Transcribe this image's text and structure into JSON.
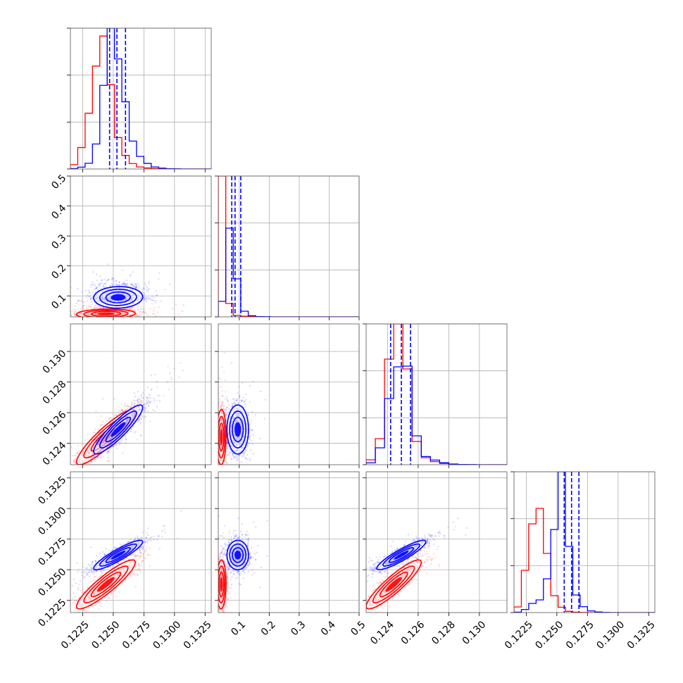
{
  "chart_data": {
    "type": "scatter",
    "kind": "corner-plot",
    "grid": true,
    "colors": {
      "red": "#ff0000",
      "blue": "#0000ff"
    },
    "series": [
      {
        "color": "red",
        "mean": [
          0.1244,
          0.04,
          0.1244,
          0.1238
        ],
        "std": [
          0.0012,
          0.008,
          0.0009,
          0.001
        ],
        "corr": {
          "0-2": 0.9,
          "0-3": 0.9,
          "2-3": 0.9,
          "0-1": 0.1,
          "1-2": 0.05,
          "1-3": 0.05
        }
      },
      {
        "color": "blue",
        "mean": [
          0.1254,
          0.095,
          0.1249,
          0.1262
        ],
        "std": [
          0.001,
          0.018,
          0.0008,
          0.0006
        ],
        "corr": {
          "0-2": 0.9,
          "0-3": 0.9,
          "2-3": 0.9,
          "0-1": 0.05,
          "1-2": 0.0,
          "1-3": 0.0
        }
      }
    ],
    "blue_quantiles": [
      [
        0.1247,
        0.1253,
        0.126
      ],
      [
        0.075,
        0.086,
        0.105
      ],
      [
        0.1242,
        0.1249,
        0.1255
      ],
      [
        0.1256,
        0.1262,
        0.1268
      ]
    ],
    "parameters": [
      {
        "range": [
          0.1215,
          0.133
        ],
        "ticks": [
          {
            "v": 0.1225,
            "label": "0.1225"
          },
          {
            "v": 0.125,
            "label": "0.1250"
          },
          {
            "v": 0.1275,
            "label": "0.1275"
          },
          {
            "v": 0.13,
            "label": "0.1300"
          },
          {
            "v": 0.1325,
            "label": "0.1325"
          }
        ]
      },
      {
        "range": [
          0.03,
          0.5
        ],
        "ticks": [
          {
            "v": 0.1,
            "label": "0.1"
          },
          {
            "v": 0.2,
            "label": "0.2"
          },
          {
            "v": 0.3,
            "label": "0.3"
          },
          {
            "v": 0.4,
            "label": "0.4"
          },
          {
            "v": 0.5,
            "label": "0.5"
          }
        ]
      },
      {
        "range": [
          0.1226,
          0.1318
        ],
        "ticks": [
          {
            "v": 0.124,
            "label": "0.124"
          },
          {
            "v": 0.126,
            "label": "0.126"
          },
          {
            "v": 0.128,
            "label": "0.128"
          },
          {
            "v": 0.13,
            "label": "0.130"
          }
        ]
      },
      {
        "range": [
          0.1215,
          0.133
        ],
        "ticks": [
          {
            "v": 0.1225,
            "label": "0.1225"
          },
          {
            "v": 0.125,
            "label": "0.1250"
          },
          {
            "v": 0.1275,
            "label": "0.1275"
          },
          {
            "v": 0.13,
            "label": "0.1300"
          },
          {
            "v": 0.1325,
            "label": "0.1325"
          }
        ]
      }
    ],
    "histograms": [
      {
        "edges": [
          0.1215,
          0.1221,
          0.1227,
          0.1233,
          0.1239,
          0.1245,
          0.1251,
          0.1257,
          0.1263,
          0.1269,
          0.1275,
          0.1281,
          0.1287,
          0.1293,
          0.1299,
          0.1305,
          0.133
        ],
        "red": [
          30,
          150,
          390,
          720,
          930,
          590,
          220,
          95,
          38,
          14,
          7,
          3,
          1,
          0,
          0,
          0
        ],
        "blue": [
          3,
          13,
          40,
          175,
          585,
          985,
          770,
          470,
          195,
          88,
          39,
          14,
          6,
          2,
          1,
          0
        ]
      },
      {
        "edges": [
          0.03,
          0.055,
          0.08,
          0.105,
          0.13,
          0.155,
          0.18,
          0.205,
          0.23,
          0.255,
          0.28,
          0.305,
          0.33,
          0.355,
          0.38,
          0.405,
          0.43,
          0.455,
          0.5
        ],
        "red": [
          1000,
          95,
          10,
          4,
          2,
          1,
          0,
          0,
          0,
          0,
          0,
          0,
          0,
          0,
          0,
          0,
          0,
          0
        ],
        "blue": [
          110,
          630,
          270,
          40,
          8,
          2,
          1,
          0,
          0,
          0,
          0,
          0,
          0,
          0,
          0,
          0,
          0,
          0
        ]
      },
      {
        "edges": [
          0.1226,
          0.1232,
          0.1238,
          0.1244,
          0.125,
          0.1256,
          0.1262,
          0.1268,
          0.1274,
          0.128,
          0.1286,
          0.1292,
          0.1298,
          0.1304,
          0.131,
          0.1318
        ],
        "red": [
          35,
          185,
          750,
          1000,
          680,
          165,
          50,
          22,
          9,
          4,
          1,
          0,
          0,
          0,
          0
        ],
        "blue": [
          13,
          120,
          470,
          695,
          700,
          205,
          58,
          33,
          14,
          5,
          2,
          1,
          0,
          0,
          0
        ]
      },
      {
        "edges": [
          0.1215,
          0.1221,
          0.1227,
          0.1233,
          0.1239,
          0.1245,
          0.1251,
          0.1257,
          0.1263,
          0.1269,
          0.1275,
          0.1281,
          0.1287,
          0.1293,
          0.1299,
          0.1305,
          0.133
        ],
        "red": [
          40,
          300,
          630,
          740,
          420,
          120,
          38,
          9,
          3,
          1,
          0,
          0,
          0,
          0,
          0,
          0
        ],
        "blue": [
          3,
          22,
          65,
          90,
          240,
          590,
          1000,
          470,
          125,
          42,
          12,
          4,
          1,
          0,
          0,
          0
        ]
      }
    ]
  }
}
